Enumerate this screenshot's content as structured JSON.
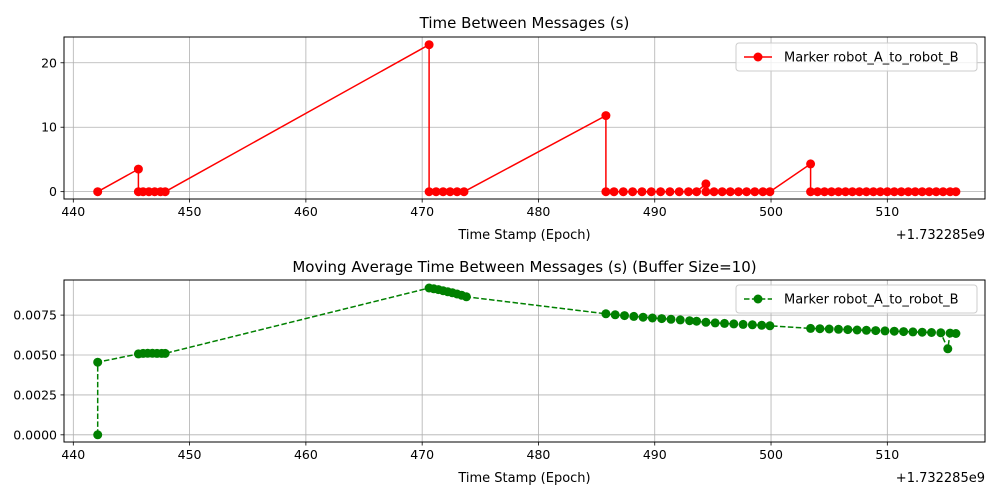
{
  "chart_data": [
    {
      "type": "line",
      "title": "Time Between Messages (s)",
      "xlabel": "Time Stamp (Epoch)",
      "ylabel": "",
      "x_offset_label": "+1.732285e9",
      "xlim": [
        439.2,
        518.4
      ],
      "ylim": [
        -1.14,
        24.0
      ],
      "x_ticks": [
        440,
        450,
        460,
        470,
        480,
        490,
        500,
        510
      ],
      "y_ticks": [
        0,
        10,
        20
      ],
      "grid": true,
      "legend": "top-right",
      "series": [
        {
          "name": "Marker robot_A_to_robot_B",
          "color": "#ff0000",
          "line_style": "solid",
          "marker": "circle",
          "points": [
            [
              442.1,
              0.0
            ],
            [
              445.6,
              3.5
            ],
            [
              445.6,
              0.0
            ],
            [
              446.0,
              0.0
            ],
            [
              446.5,
              0.0
            ],
            [
              447.0,
              0.0
            ],
            [
              447.5,
              0.0
            ],
            [
              447.9,
              0.0
            ],
            [
              470.6,
              22.8
            ],
            [
              470.6,
              0.0
            ],
            [
              471.2,
              0.0
            ],
            [
              471.8,
              0.0
            ],
            [
              472.4,
              0.0
            ],
            [
              473.0,
              0.0
            ],
            [
              473.6,
              0.0
            ],
            [
              485.8,
              11.8
            ],
            [
              485.8,
              0.0
            ],
            [
              486.5,
              0.0
            ],
            [
              487.3,
              0.0
            ],
            [
              488.1,
              0.0
            ],
            [
              488.9,
              0.0
            ],
            [
              489.7,
              0.0
            ],
            [
              490.5,
              0.0
            ],
            [
              491.3,
              0.0
            ],
            [
              492.1,
              0.0
            ],
            [
              492.9,
              0.0
            ],
            [
              493.6,
              0.0
            ],
            [
              494.4,
              1.2
            ],
            [
              494.4,
              0.0
            ],
            [
              495.1,
              0.0
            ],
            [
              495.8,
              0.0
            ],
            [
              496.5,
              0.0
            ],
            [
              497.2,
              0.0
            ],
            [
              497.9,
              0.0
            ],
            [
              498.6,
              0.0
            ],
            [
              499.3,
              0.0
            ],
            [
              499.9,
              0.0
            ],
            [
              503.4,
              4.3
            ],
            [
              503.4,
              0.0
            ],
            [
              504.0,
              0.0
            ],
            [
              504.6,
              0.0
            ],
            [
              505.2,
              0.0
            ],
            [
              505.8,
              0.0
            ],
            [
              506.4,
              0.0
            ],
            [
              507.0,
              0.0
            ],
            [
              507.6,
              0.0
            ],
            [
              508.2,
              0.0
            ],
            [
              508.8,
              0.0
            ],
            [
              509.4,
              0.0
            ],
            [
              510.0,
              0.0
            ],
            [
              510.6,
              0.0
            ],
            [
              511.2,
              0.0
            ],
            [
              511.8,
              0.0
            ],
            [
              512.4,
              0.0
            ],
            [
              513.0,
              0.0
            ],
            [
              513.6,
              0.0
            ],
            [
              514.2,
              0.0
            ],
            [
              514.8,
              0.0
            ],
            [
              515.4,
              0.0
            ],
            [
              515.9,
              0.0
            ]
          ]
        }
      ]
    },
    {
      "type": "line",
      "title": "Moving Average Time Between Messages (s) (Buffer Size=10)",
      "xlabel": "Time Stamp (Epoch)",
      "ylabel": "",
      "x_offset_label": "+1.732285e9",
      "xlim": [
        439.2,
        518.4
      ],
      "ylim": [
        -0.00045,
        0.0097
      ],
      "x_ticks": [
        440,
        450,
        460,
        470,
        480,
        490,
        500,
        510
      ],
      "y_ticks": [
        0.0,
        0.0025,
        0.005,
        0.0075
      ],
      "y_tick_labels": [
        "0.0000",
        "0.0025",
        "0.0050",
        "0.0075"
      ],
      "grid": true,
      "legend": "top-right",
      "series": [
        {
          "name": "Marker robot_A_to_robot_B",
          "color": "#008000",
          "line_style": "dashed",
          "marker": "circle",
          "points": [
            [
              442.1,
              0.0
            ],
            [
              442.1,
              0.00455
            ],
            [
              445.6,
              0.00507
            ],
            [
              446.0,
              0.0051
            ],
            [
              446.4,
              0.00511
            ],
            [
              446.8,
              0.00511
            ],
            [
              447.2,
              0.0051
            ],
            [
              447.6,
              0.0051
            ],
            [
              447.9,
              0.0051
            ],
            [
              470.6,
              0.0092
            ],
            [
              471.0,
              0.00915
            ],
            [
              471.4,
              0.0091
            ],
            [
              471.8,
              0.00903
            ],
            [
              472.2,
              0.00896
            ],
            [
              472.6,
              0.0089
            ],
            [
              473.0,
              0.00882
            ],
            [
              473.4,
              0.00874
            ],
            [
              473.8,
              0.00865
            ],
            [
              485.8,
              0.00758
            ],
            [
              486.6,
              0.00752
            ],
            [
              487.4,
              0.00747
            ],
            [
              488.2,
              0.00742
            ],
            [
              489.0,
              0.00737
            ],
            [
              489.8,
              0.00732
            ],
            [
              490.6,
              0.00728
            ],
            [
              491.4,
              0.00724
            ],
            [
              492.2,
              0.0072
            ],
            [
              493.0,
              0.00715
            ],
            [
              493.6,
              0.00712
            ],
            [
              494.4,
              0.00705
            ],
            [
              495.2,
              0.00701
            ],
            [
              496.0,
              0.00698
            ],
            [
              496.8,
              0.00695
            ],
            [
              497.6,
              0.00692
            ],
            [
              498.4,
              0.00689
            ],
            [
              499.2,
              0.00686
            ],
            [
              499.9,
              0.00683
            ],
            [
              503.4,
              0.00667
            ],
            [
              504.2,
              0.00665
            ],
            [
              505.0,
              0.00663
            ],
            [
              505.8,
              0.00661
            ],
            [
              506.6,
              0.00659
            ],
            [
              507.4,
              0.00657
            ],
            [
              508.2,
              0.00655
            ],
            [
              509.0,
              0.00653
            ],
            [
              509.8,
              0.00651
            ],
            [
              510.6,
              0.00649
            ],
            [
              511.4,
              0.00647
            ],
            [
              512.2,
              0.00645
            ],
            [
              513.0,
              0.00643
            ],
            [
              513.8,
              0.00641
            ],
            [
              514.6,
              0.00639
            ],
            [
              515.2,
              0.00539
            ],
            [
              515.4,
              0.00637
            ],
            [
              515.9,
              0.00635
            ]
          ]
        }
      ]
    }
  ]
}
